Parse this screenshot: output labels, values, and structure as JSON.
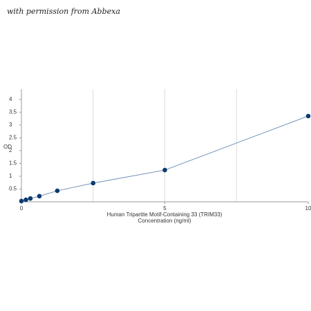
{
  "watermark": "with permission from Abbexa",
  "chart_data": {
    "type": "line",
    "xlabel": [
      "Human Tripartite Motif-Containing 33 (TRIM33)",
      "Concentration (ng/ml)"
    ],
    "ylabel": "OD",
    "x": [
      0,
      0.156,
      0.312,
      0.625,
      1.25,
      2.5,
      5,
      10
    ],
    "series": [
      {
        "color": "#0d3b6e",
        "values": [
          0.03,
          0.08,
          0.13,
          0.22,
          0.43,
          0.73,
          1.24,
          3.35
        ]
      }
    ],
    "xlim": [
      0,
      10
    ],
    "ylim": [
      0,
      4.4
    ],
    "xticks": [
      0,
      5,
      10
    ],
    "yticks": [
      0.5,
      1,
      1.5,
      2,
      2.5,
      3,
      3.5,
      4
    ],
    "xgrid": [
      2.5,
      5,
      7.5
    ]
  }
}
